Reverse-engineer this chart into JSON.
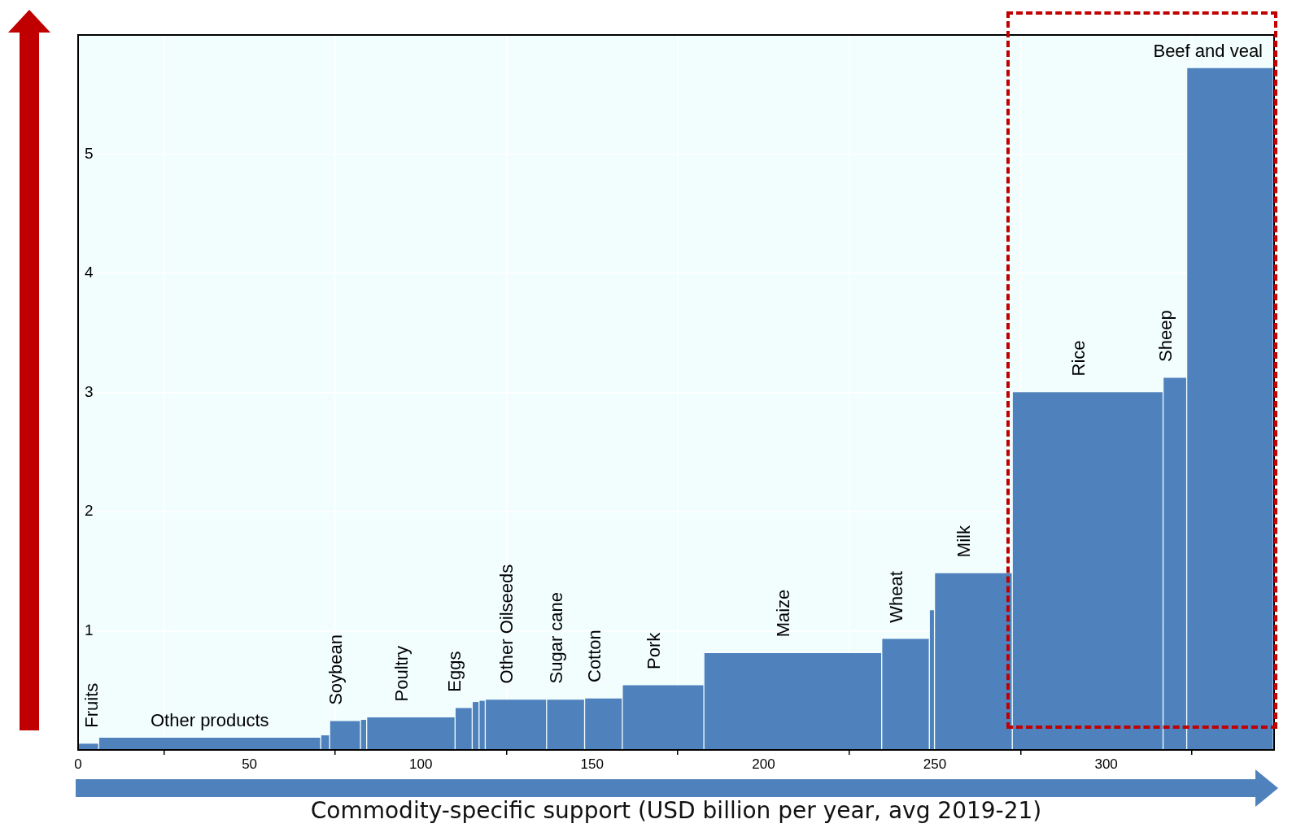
{
  "chart_data": {
    "type": "histogram",
    "xlabel": "Commodity-specific support (USD billion per year, avg 2019-21)",
    "bins": [
      0,
      6,
      70.8,
      73.4,
      82.4,
      84.2,
      110,
      115,
      117,
      118.8,
      136.7,
      147.8,
      158.8,
      182.6,
      234.5,
      248.4,
      249.9,
      272.6,
      316.6,
      323.5,
      348.8
    ],
    "values": [
      0.05,
      0.1,
      0.12,
      0.24,
      0.25,
      0.27,
      0.35,
      0.4,
      0.41,
      0.42,
      0.42,
      0.43,
      0.54,
      0.81,
      0.93,
      1.17,
      1.48,
      3.0,
      3.12,
      5.72
    ],
    "color": "#4f81bd",
    "xlim": [
      0,
      349
    ],
    "xticks": [
      0,
      50,
      100,
      150,
      200,
      250,
      300
    ],
    "ylim": [
      0,
      6
    ],
    "yticks": [
      {
        "value": 0,
        "label": null
      },
      1,
      2,
      3,
      4,
      5,
      {
        "value": 6,
        "label": null
      }
    ],
    "grid": true,
    "legend": false,
    "annotations": [
      {
        "text": "Fruits",
        "x": 3,
        "y": 0.05
      },
      {
        "text": "Other products",
        "x": 38.4,
        "y": 0.1
      },
      {
        "text": "Soybean",
        "x": 77.9,
        "y": 0.24
      },
      {
        "text": "Poultry",
        "x": 97.1,
        "y": 0.27
      },
      {
        "text": "Eggs",
        "x": 112.5,
        "y": 0.35
      },
      {
        "text": "Other Oilseeds",
        "x": 127.75,
        "y": 0.42
      },
      {
        "text": "Sugar cane",
        "x": 142.25,
        "y": 0.42
      },
      {
        "text": "Cotton",
        "x": 153.3,
        "y": 0.43
      },
      {
        "text": "Pork",
        "x": 170.7,
        "y": 0.54
      },
      {
        "text": "Maize",
        "x": 208.55,
        "y": 0.81
      },
      {
        "text": "Wheat",
        "x": 241.45,
        "y": 0.93
      },
      {
        "text": "Milk",
        "x": 261.25,
        "y": 1.48
      },
      {
        "text": "Rice",
        "x": 294.6,
        "y": 3.0
      },
      {
        "text": "Sheep",
        "x": 320.05,
        "y": 3.12
      },
      {
        "text": "Beef and veal",
        "x": 336.15,
        "y": 5.72
      }
    ]
  }
}
